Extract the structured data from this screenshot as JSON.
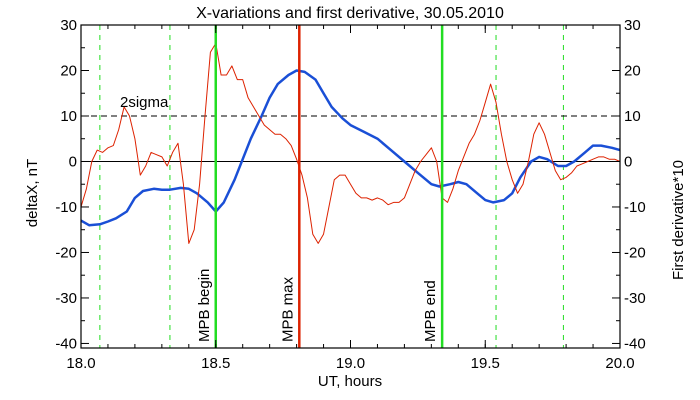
{
  "chart_data": {
    "type": "line",
    "title": "X-variations and first derivative, 30.05.2010",
    "xlabel": "UT, hours",
    "ylabel_left": "deltaX, nT",
    "ylabel_right": "First derivative*10",
    "xlim": [
      18.0,
      20.0
    ],
    "ylim": [
      -41,
      30
    ],
    "x_ticks": [
      "18.0",
      "18.5",
      "19.0",
      "19.5",
      "20.0"
    ],
    "y_ticks": [
      "30",
      "20",
      "10",
      "0",
      "-10",
      "-20",
      "-30",
      "-40"
    ],
    "threshold": {
      "label": "2sigma",
      "value": 10
    },
    "zero_line": 0,
    "vertical_markers": [
      {
        "label": "MPB begin",
        "x": 18.5,
        "color": "#22dd22"
      },
      {
        "label": "MPB max",
        "x": 18.81,
        "color": "#dd2200"
      },
      {
        "label": "MPB end",
        "x": 19.34,
        "color": "#22dd22"
      }
    ],
    "dashed_markers": [
      18.07,
      18.33,
      19.54,
      19.79
    ],
    "colors": {
      "deltaX": "#1a4fd6",
      "derivative": "#dd2200",
      "mpb_edge": "#22dd22",
      "mpb_max": "#dd2200"
    },
    "series": [
      {
        "color": "#1a4fd6",
        "x": [
          18.0,
          18.03,
          18.07,
          18.1,
          18.13,
          18.17,
          18.2,
          18.23,
          18.27,
          18.3,
          18.33,
          18.37,
          18.4,
          18.43,
          18.47,
          18.5,
          18.53,
          18.57,
          18.6,
          18.63,
          18.67,
          18.7,
          18.73,
          18.77,
          18.8,
          18.83,
          18.87,
          18.9,
          18.93,
          18.97,
          19.0,
          19.05,
          19.1,
          19.15,
          19.2,
          19.25,
          19.3,
          19.33,
          19.37,
          19.4,
          19.43,
          19.47,
          19.5,
          19.53,
          19.57,
          19.6,
          19.63,
          19.67,
          19.7,
          19.73,
          19.77,
          19.8,
          19.83,
          19.87,
          19.9,
          19.93,
          19.97,
          20.0
        ],
        "values": [
          -13.0,
          -14.0,
          -13.8,
          -13.2,
          -12.5,
          -11.0,
          -8.0,
          -6.5,
          -6.0,
          -6.2,
          -6.2,
          -5.8,
          -6.0,
          -7.0,
          -9.0,
          -11.0,
          -9.0,
          -4.0,
          0.5,
          5.0,
          10.0,
          14.0,
          17.0,
          19.0,
          20.0,
          19.7,
          18.0,
          15.0,
          12.0,
          9.5,
          8.0,
          6.5,
          5.0,
          2.5,
          0.0,
          -2.5,
          -5.0,
          -5.5,
          -5.0,
          -4.5,
          -5.0,
          -7.0,
          -8.5,
          -9.0,
          -8.5,
          -7.0,
          -3.5,
          0.0,
          1.0,
          0.5,
          -1.0,
          -1.0,
          0.0,
          2.0,
          3.5,
          3.5,
          3.0,
          2.5
        ]
      },
      {
        "color": "#dd2200",
        "x": [
          18.0,
          18.02,
          18.04,
          18.06,
          18.08,
          18.1,
          18.12,
          18.14,
          18.16,
          18.18,
          18.2,
          18.22,
          18.24,
          18.26,
          18.28,
          18.3,
          18.32,
          18.34,
          18.36,
          18.38,
          18.4,
          18.42,
          18.44,
          18.46,
          18.48,
          18.5,
          18.52,
          18.54,
          18.56,
          18.58,
          18.6,
          18.62,
          18.64,
          18.66,
          18.68,
          18.7,
          18.72,
          18.74,
          18.76,
          18.78,
          18.8,
          18.82,
          18.84,
          18.86,
          18.88,
          18.9,
          18.92,
          18.94,
          18.96,
          18.98,
          19.0,
          19.02,
          19.04,
          19.06,
          19.08,
          19.1,
          19.12,
          19.14,
          19.16,
          19.18,
          19.2,
          19.22,
          19.24,
          19.26,
          19.28,
          19.3,
          19.32,
          19.34,
          19.36,
          19.38,
          19.4,
          19.42,
          19.44,
          19.46,
          19.48,
          19.5,
          19.52,
          19.54,
          19.56,
          19.58,
          19.6,
          19.62,
          19.64,
          19.66,
          19.68,
          19.7,
          19.72,
          19.74,
          19.76,
          19.78,
          19.8,
          19.82,
          19.84,
          19.86,
          19.88,
          19.9,
          19.92,
          19.94,
          19.96,
          19.98,
          20.0
        ],
        "values": [
          -10.0,
          -6.0,
          0.0,
          2.5,
          2.0,
          3.0,
          3.5,
          7.0,
          12.0,
          10.0,
          5.0,
          -3.0,
          -1.0,
          2.0,
          1.5,
          1.0,
          -1.0,
          2.0,
          4.0,
          -5.0,
          -18.0,
          -15.0,
          -5.0,
          10.0,
          24.0,
          26.0,
          19.0,
          19.0,
          21.0,
          18.0,
          18.0,
          14.0,
          12.0,
          10.0,
          8.0,
          7.0,
          6.0,
          6.0,
          5.0,
          3.5,
          0.5,
          -3.0,
          -8.0,
          -16.0,
          -18.0,
          -16.0,
          -10.0,
          -4.0,
          -3.0,
          -3.0,
          -5.0,
          -7.0,
          -8.0,
          -8.0,
          -8.5,
          -8.0,
          -8.5,
          -9.5,
          -9.0,
          -9.0,
          -8.0,
          -5.0,
          -2.0,
          0.0,
          1.5,
          3.0,
          0.0,
          -8.0,
          -9.0,
          -6.0,
          -2.0,
          1.0,
          4.0,
          6.0,
          9.0,
          13.0,
          17.0,
          13.0,
          6.0,
          0.0,
          -4.0,
          -7.0,
          -5.0,
          0.0,
          6.0,
          8.5,
          6.0,
          2.0,
          -2.0,
          -4.0,
          -3.5,
          -2.5,
          -1.0,
          -0.5,
          0.0,
          0.5,
          1.0,
          1.0,
          0.5,
          0.5,
          0.0
        ]
      }
    ]
  }
}
